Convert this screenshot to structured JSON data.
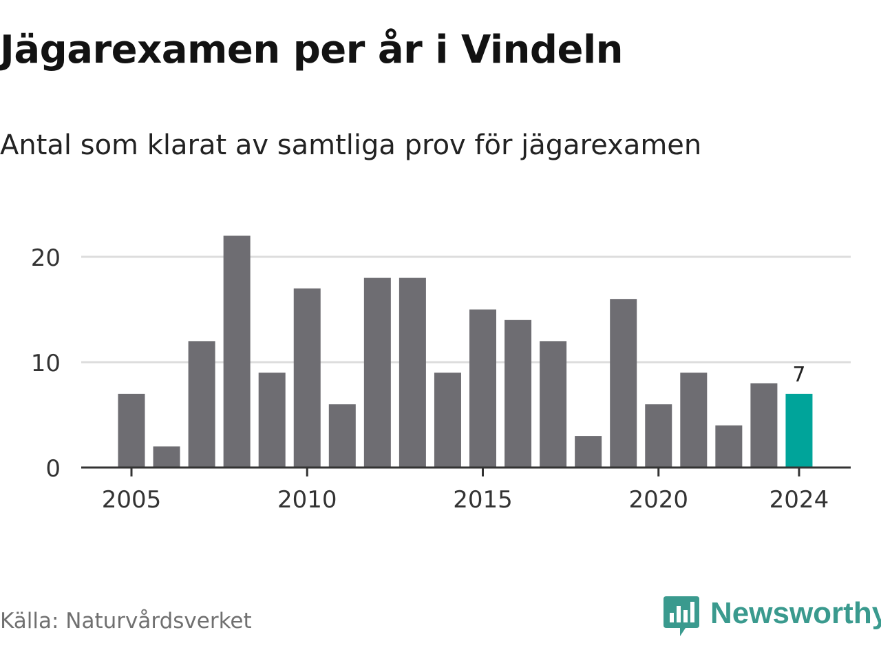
{
  "title": "Jägarexamen per år i Vindeln",
  "subtitle": "Antal som klarat av samtliga prov för jägarexamen",
  "source": "Källa: Naturvårdsverket",
  "brand": {
    "name": "Newsworthy",
    "icon": "newsworthy-logo-icon",
    "color": "#3a9a8e"
  },
  "colors": {
    "bar": "#6e6d72",
    "highlight": "#00a49a",
    "grid": "#dddddd",
    "axis": "#333333"
  },
  "chart_data": {
    "type": "bar",
    "title": "Jägarexamen per år i Vindeln",
    "subtitle": "Antal som klarat av samtliga prov för jägarexamen",
    "categories": [
      "2005",
      "2006",
      "2007",
      "2008",
      "2009",
      "2010",
      "2011",
      "2012",
      "2013",
      "2014",
      "2015",
      "2016",
      "2017",
      "2018",
      "2019",
      "2020",
      "2021",
      "2022",
      "2023",
      "2024"
    ],
    "values": [
      7,
      2,
      12,
      22,
      9,
      17,
      6,
      18,
      18,
      9,
      15,
      14,
      12,
      3,
      16,
      6,
      9,
      4,
      8,
      7
    ],
    "x_tick_labels": [
      "2005",
      "2010",
      "2015",
      "2020",
      "2024"
    ],
    "y_ticks": [
      0,
      10,
      20
    ],
    "ylim": [
      0,
      20
    ],
    "grid": true,
    "highlight": {
      "category": "2024",
      "label": "7"
    }
  }
}
